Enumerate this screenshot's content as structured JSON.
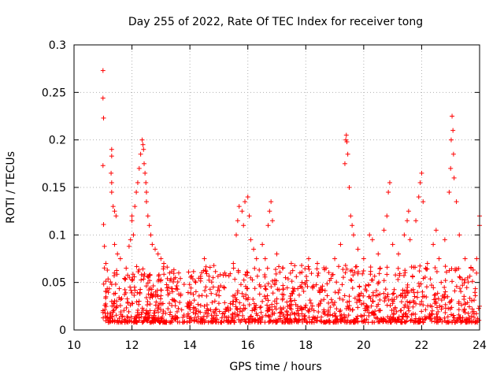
{
  "chart_data": {
    "type": "scatter",
    "title": "Day 255 of 2022, Rate Of TEC Index for receiver tong",
    "xlabel": "GPS time / hours",
    "ylabel": "ROTI / TECUs",
    "xlim": [
      10,
      24
    ],
    "ylim": [
      0,
      0.3
    ],
    "x_ticks": [
      "10",
      "12",
      "14",
      "16",
      "18",
      "20",
      "22",
      "24"
    ],
    "y_ticks": [
      "0",
      "0.05",
      "0.1",
      "0.15",
      "0.2",
      "0.25",
      "0.3"
    ],
    "grid": true,
    "marker": "+",
    "marker_color": "#ff0000",
    "series": [
      {
        "values": [
          [
            11.0,
            0.273
          ],
          [
            11.0,
            0.244
          ],
          [
            11.02,
            0.223
          ],
          [
            11.0,
            0.173
          ],
          [
            11.02,
            0.111
          ],
          [
            11.05,
            0.088
          ],
          [
            11.1,
            0.07
          ],
          [
            11.15,
            0.063
          ],
          [
            11.3,
            0.19
          ],
          [
            11.3,
            0.183
          ],
          [
            11.28,
            0.165
          ],
          [
            11.3,
            0.155
          ],
          [
            11.3,
            0.145
          ],
          [
            11.35,
            0.13
          ],
          [
            11.4,
            0.125
          ],
          [
            11.45,
            0.12
          ],
          [
            11.4,
            0.09
          ],
          [
            11.5,
            0.08
          ],
          [
            11.6,
            0.075
          ],
          [
            11.8,
            0.065
          ],
          [
            11.9,
            0.088
          ],
          [
            11.95,
            0.095
          ],
          [
            12.0,
            0.12
          ],
          [
            12.0,
            0.115
          ],
          [
            12.05,
            0.1
          ],
          [
            12.1,
            0.13
          ],
          [
            12.15,
            0.145
          ],
          [
            12.2,
            0.155
          ],
          [
            12.25,
            0.17
          ],
          [
            12.3,
            0.185
          ],
          [
            12.35,
            0.2
          ],
          [
            12.38,
            0.195
          ],
          [
            12.4,
            0.19
          ],
          [
            12.42,
            0.175
          ],
          [
            12.45,
            0.165
          ],
          [
            12.48,
            0.155
          ],
          [
            12.5,
            0.145
          ],
          [
            12.5,
            0.135
          ],
          [
            12.55,
            0.12
          ],
          [
            12.6,
            0.11
          ],
          [
            12.65,
            0.1
          ],
          [
            12.7,
            0.09
          ],
          [
            12.8,
            0.085
          ],
          [
            12.9,
            0.08
          ],
          [
            13.0,
            0.075
          ],
          [
            13.1,
            0.07
          ],
          [
            13.3,
            0.06
          ],
          [
            13.5,
            0.055
          ],
          [
            13.8,
            0.048
          ],
          [
            14.2,
            0.05
          ],
          [
            14.5,
            0.075
          ],
          [
            14.8,
            0.055
          ],
          [
            15.2,
            0.06
          ],
          [
            15.5,
            0.07
          ],
          [
            15.6,
            0.1
          ],
          [
            15.65,
            0.115
          ],
          [
            15.7,
            0.13
          ],
          [
            15.8,
            0.125
          ],
          [
            15.85,
            0.11
          ],
          [
            15.9,
            0.135
          ],
          [
            16.0,
            0.14
          ],
          [
            16.05,
            0.12
          ],
          [
            16.1,
            0.095
          ],
          [
            16.2,
            0.085
          ],
          [
            16.3,
            0.075
          ],
          [
            16.5,
            0.09
          ],
          [
            16.6,
            0.075
          ],
          [
            16.7,
            0.11
          ],
          [
            16.75,
            0.125
          ],
          [
            16.8,
            0.135
          ],
          [
            16.85,
            0.115
          ],
          [
            17.0,
            0.08
          ],
          [
            17.2,
            0.065
          ],
          [
            17.5,
            0.07
          ],
          [
            17.8,
            0.06
          ],
          [
            18.1,
            0.075
          ],
          [
            18.4,
            0.07
          ],
          [
            18.7,
            0.065
          ],
          [
            19.0,
            0.075
          ],
          [
            19.2,
            0.09
          ],
          [
            19.35,
            0.175
          ],
          [
            19.38,
            0.2
          ],
          [
            19.4,
            0.205
          ],
          [
            19.42,
            0.198
          ],
          [
            19.45,
            0.185
          ],
          [
            19.5,
            0.15
          ],
          [
            19.55,
            0.12
          ],
          [
            19.6,
            0.11
          ],
          [
            19.65,
            0.1
          ],
          [
            19.8,
            0.085
          ],
          [
            20.0,
            0.075
          ],
          [
            20.2,
            0.1
          ],
          [
            20.3,
            0.095
          ],
          [
            20.5,
            0.08
          ],
          [
            20.7,
            0.105
          ],
          [
            20.8,
            0.12
          ],
          [
            20.85,
            0.145
          ],
          [
            20.9,
            0.155
          ],
          [
            21.0,
            0.09
          ],
          [
            21.2,
            0.08
          ],
          [
            21.4,
            0.1
          ],
          [
            21.5,
            0.115
          ],
          [
            21.55,
            0.125
          ],
          [
            21.6,
            0.095
          ],
          [
            21.8,
            0.115
          ],
          [
            21.9,
            0.14
          ],
          [
            21.95,
            0.155
          ],
          [
            22.0,
            0.165
          ],
          [
            22.05,
            0.135
          ],
          [
            22.2,
            0.07
          ],
          [
            22.4,
            0.09
          ],
          [
            22.5,
            0.105
          ],
          [
            22.6,
            0.075
          ],
          [
            22.8,
            0.095
          ],
          [
            22.95,
            0.145
          ],
          [
            23.0,
            0.17
          ],
          [
            23.02,
            0.2
          ],
          [
            23.05,
            0.225
          ],
          [
            23.08,
            0.21
          ],
          [
            23.1,
            0.185
          ],
          [
            23.12,
            0.16
          ],
          [
            23.2,
            0.135
          ],
          [
            23.3,
            0.1
          ],
          [
            23.5,
            0.075
          ],
          [
            23.7,
            0.065
          ],
          [
            23.9,
            0.075
          ],
          [
            24.0,
            0.12
          ],
          [
            24.0,
            0.11
          ],
          [
            11.1,
            0.035
          ],
          [
            11.3,
            0.03
          ],
          [
            11.6,
            0.032
          ],
          [
            12.0,
            0.028
          ],
          [
            12.5,
            0.034
          ],
          [
            13.0,
            0.036
          ],
          [
            13.5,
            0.03
          ],
          [
            14.0,
            0.026
          ],
          [
            14.5,
            0.025
          ],
          [
            15.0,
            0.028
          ],
          [
            15.5,
            0.03
          ],
          [
            16.0,
            0.032
          ],
          [
            16.5,
            0.03
          ],
          [
            17.0,
            0.028
          ],
          [
            17.5,
            0.027
          ],
          [
            18.0,
            0.026
          ],
          [
            18.5,
            0.028
          ],
          [
            19.0,
            0.029
          ],
          [
            19.5,
            0.03
          ],
          [
            20.0,
            0.028
          ],
          [
            20.5,
            0.027
          ],
          [
            21.0,
            0.028
          ],
          [
            21.5,
            0.03
          ],
          [
            22.0,
            0.03
          ],
          [
            22.5,
            0.028
          ],
          [
            23.0,
            0.03
          ],
          [
            23.5,
            0.027
          ],
          [
            24.0,
            0.025
          ]
        ]
      }
    ]
  }
}
